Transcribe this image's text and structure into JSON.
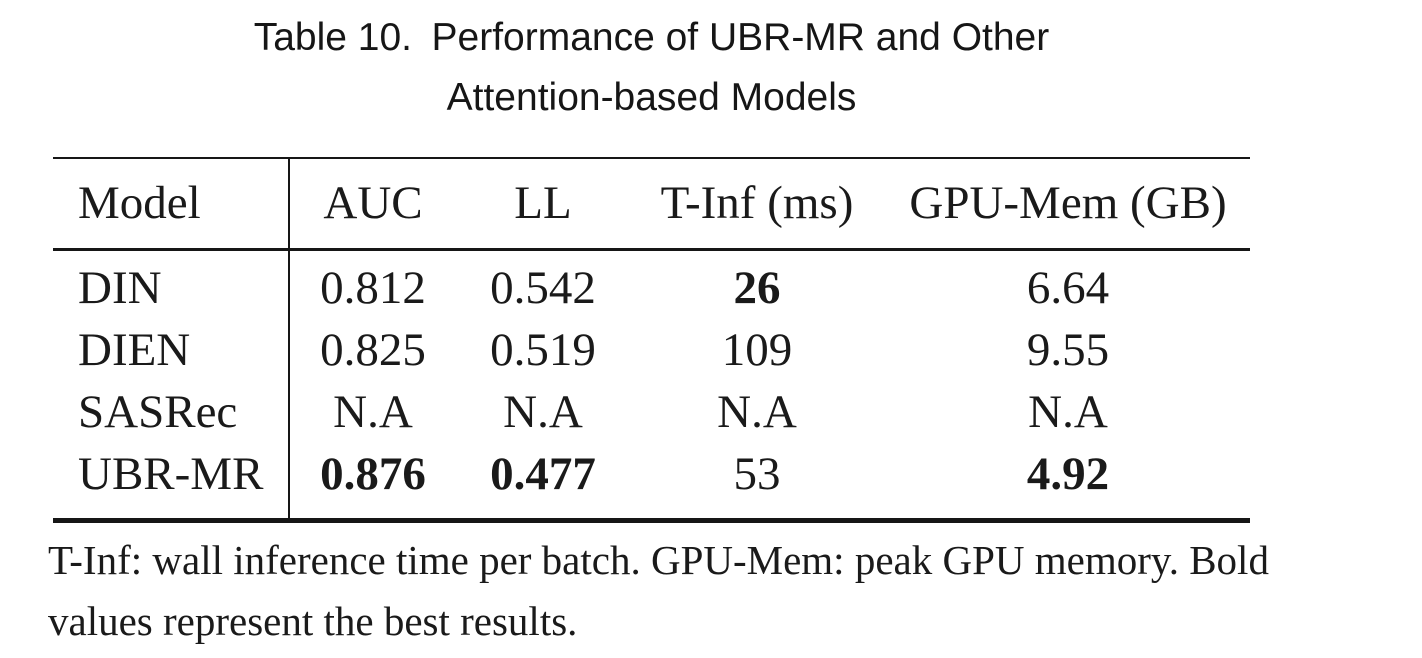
{
  "caption": {
    "line1": "Table 10. Performance of UBR-MR and Other",
    "line2": "Attention-based Models"
  },
  "table": {
    "columns": [
      "Model",
      "AUC",
      "LL",
      "T-Inf (ms)",
      "GPU-Mem (GB)"
    ],
    "rows": [
      {
        "model": "DIN",
        "cells": [
          {
            "value": "0.812",
            "bold": "false"
          },
          {
            "value": "0.542",
            "bold": "false"
          },
          {
            "value": "26",
            "bold": "true"
          },
          {
            "value": "6.64",
            "bold": "false"
          }
        ]
      },
      {
        "model": "DIEN",
        "cells": [
          {
            "value": "0.825",
            "bold": "false"
          },
          {
            "value": "0.519",
            "bold": "false"
          },
          {
            "value": "109",
            "bold": "false"
          },
          {
            "value": "9.55",
            "bold": "false"
          }
        ]
      },
      {
        "model": "SASRec",
        "cells": [
          {
            "value": "N.A",
            "bold": "false"
          },
          {
            "value": "N.A",
            "bold": "false"
          },
          {
            "value": "N.A",
            "bold": "false"
          },
          {
            "value": "N.A",
            "bold": "false"
          }
        ]
      },
      {
        "model": "UBR-MR",
        "cells": [
          {
            "value": "0.876",
            "bold": "true"
          },
          {
            "value": "0.477",
            "bold": "true"
          },
          {
            "value": "53",
            "bold": "false"
          },
          {
            "value": "4.92",
            "bold": "true"
          }
        ]
      }
    ]
  },
  "footnote": {
    "line1": "T-Inf: wall inference time per batch. GPU-Mem: peak GPU memory. Bold",
    "line2": "values represent the best results."
  },
  "colors": {
    "background": "#ffffff",
    "text": "#1a1a1a",
    "rule": "#161616"
  }
}
